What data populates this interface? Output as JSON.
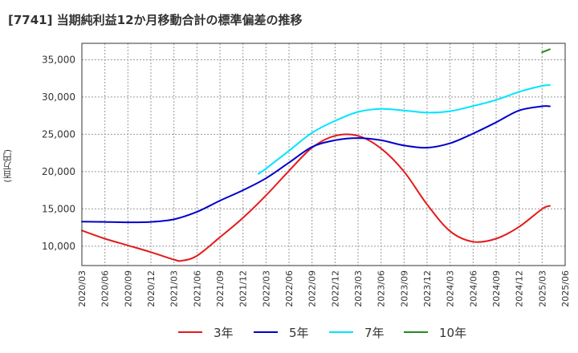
{
  "title": "[7741]  当期純利益12か月移動合計の標準偏差の推移",
  "chart_data": {
    "type": "line",
    "title": "[7741]  当期純利益12か月移動合計の標準偏差の推移",
    "xlabel": "",
    "ylabel": "(百万円)",
    "ylim": [
      7400,
      37200
    ],
    "yticks": [
      10000,
      15000,
      20000,
      25000,
      30000,
      35000
    ],
    "ytick_labels": [
      "10,000",
      "15,000",
      "20,000",
      "25,000",
      "30,000",
      "35,000"
    ],
    "x": [
      "2020/03",
      "2020/06",
      "2020/09",
      "2020/12",
      "2021/03",
      "2021/06",
      "2021/09",
      "2021/12",
      "2022/03",
      "2022/06",
      "2022/09",
      "2022/12",
      "2023/03",
      "2023/06",
      "2023/09",
      "2023/12",
      "2024/03",
      "2024/06",
      "2024/09",
      "2024/12",
      "2025/03",
      "2025/06"
    ],
    "grid": true,
    "legend_position": "bottom",
    "series": [
      {
        "name": "3年",
        "color": "#e41a1c",
        "points": [
          [
            "2020/03",
            12100
          ],
          [
            "2020/06",
            11000
          ],
          [
            "2020/09",
            10100
          ],
          [
            "2020/12",
            9200
          ],
          [
            "2021/03",
            8200
          ],
          [
            "2021/04",
            8050
          ],
          [
            "2021/06",
            8700
          ],
          [
            "2021/09",
            11200
          ],
          [
            "2021/12",
            13800
          ],
          [
            "2022/03",
            16800
          ],
          [
            "2022/06",
            20100
          ],
          [
            "2022/09",
            23200
          ],
          [
            "2022/12",
            24800
          ],
          [
            "2023/03",
            24800
          ],
          [
            "2023/06",
            23100
          ],
          [
            "2023/09",
            20000
          ],
          [
            "2023/12",
            15600
          ],
          [
            "2024/03",
            12000
          ],
          [
            "2024/06",
            10600
          ],
          [
            "2024/09",
            11000
          ],
          [
            "2024/12",
            12600
          ],
          [
            "2025/03",
            15000
          ],
          [
            "2025/04",
            15400
          ]
        ]
      },
      {
        "name": "5年",
        "color": "#0000cd",
        "points": [
          [
            "2020/03",
            13300
          ],
          [
            "2020/06",
            13250
          ],
          [
            "2020/09",
            13200
          ],
          [
            "2020/12",
            13250
          ],
          [
            "2021/03",
            13600
          ],
          [
            "2021/06",
            14600
          ],
          [
            "2021/09",
            16100
          ],
          [
            "2021/12",
            17500
          ],
          [
            "2022/03",
            19100
          ],
          [
            "2022/06",
            21200
          ],
          [
            "2022/09",
            23300
          ],
          [
            "2022/12",
            24200
          ],
          [
            "2023/03",
            24500
          ],
          [
            "2023/06",
            24200
          ],
          [
            "2023/09",
            23500
          ],
          [
            "2023/12",
            23200
          ],
          [
            "2024/03",
            23800
          ],
          [
            "2024/06",
            25100
          ],
          [
            "2024/09",
            26600
          ],
          [
            "2024/12",
            28200
          ],
          [
            "2025/03",
            28750
          ],
          [
            "2025/04",
            28750
          ]
        ]
      },
      {
        "name": "7年",
        "color": "#00e5ff",
        "points": [
          [
            "2022/02",
            19700
          ],
          [
            "2022/03",
            20400
          ],
          [
            "2022/06",
            22800
          ],
          [
            "2022/09",
            25200
          ],
          [
            "2022/12",
            26800
          ],
          [
            "2023/03",
            28000
          ],
          [
            "2023/06",
            28400
          ],
          [
            "2023/09",
            28200
          ],
          [
            "2023/12",
            27900
          ],
          [
            "2024/03",
            28100
          ],
          [
            "2024/06",
            28800
          ],
          [
            "2024/09",
            29600
          ],
          [
            "2024/12",
            30700
          ],
          [
            "2025/03",
            31500
          ],
          [
            "2025/04",
            31600
          ]
        ]
      },
      {
        "name": "10年",
        "color": "#228b22",
        "points": [
          [
            "2025/03",
            36000
          ],
          [
            "2025/04",
            36400
          ]
        ]
      }
    ]
  }
}
